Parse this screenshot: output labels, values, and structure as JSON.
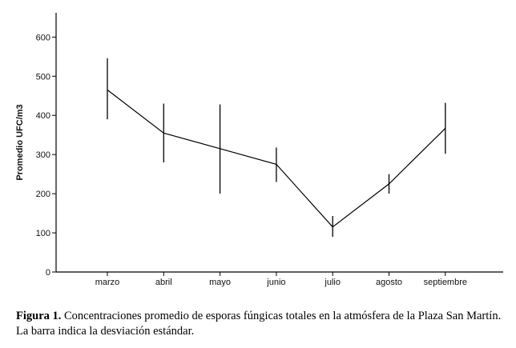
{
  "chart_data": {
    "type": "line",
    "categories": [
      "marzo",
      "abril",
      "mayo",
      "junio",
      "julio",
      "agosto",
      "septiembre"
    ],
    "series": [
      {
        "values": [
          465,
          355,
          315,
          275,
          115,
          225,
          367
        ],
        "error_low": [
          390,
          280,
          200,
          230,
          90,
          200,
          302
        ],
        "error_high": [
          546,
          430,
          428,
          318,
          143,
          250,
          432
        ]
      }
    ],
    "ylabel": "Promedio UFC/m3",
    "ylim": [
      0,
      650
    ],
    "yticks": [
      0,
      100,
      200,
      300,
      400,
      500,
      600
    ],
    "grid": false
  },
  "caption": {
    "label": "Figura 1.",
    "text": " Concentraciones promedio de esporas fúngicas totales en la atmósfera de la Plaza San Martín. La barra indica la desviación estándar."
  }
}
